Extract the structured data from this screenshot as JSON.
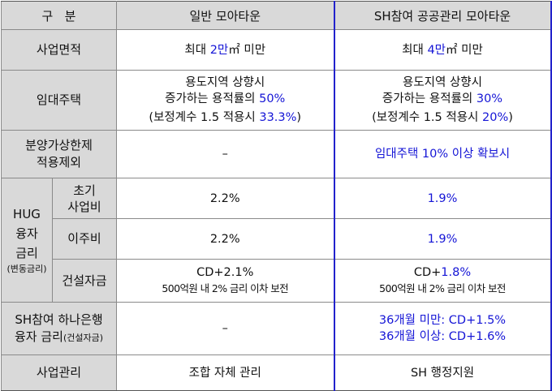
{
  "header": {
    "col_category": "구   분",
    "col_general": "일반 모아타운",
    "col_sh": "SH참여 공공관리 모아타운"
  },
  "rows": {
    "area": {
      "label": "사업면적",
      "general": {
        "pre": "최대 ",
        "hl": "2만",
        "post": "㎡ 미만"
      },
      "sh": {
        "pre": "최대 ",
        "hl": "4만",
        "post": "㎡ 미만"
      }
    },
    "rental": {
      "label": "임대주택",
      "general": {
        "line1": "용도지역 상향시",
        "line2_pre": "증가하는 용적률의 ",
        "line2_hl": "50%",
        "line3_pre": "(보정계수 1.5 적용시 ",
        "line3_hl": "33.3%",
        "line3_post": ")"
      },
      "sh": {
        "line1": "용도지역 상향시",
        "line2_pre": "증가하는 용적률의 ",
        "line2_hl": "30%",
        "line3_pre": "(보정계수 1.5 적용시 ",
        "line3_hl": "20%",
        "line3_post": ")"
      }
    },
    "price_cap": {
      "label_line1": "분양가상한제",
      "label_line2": "적용제외",
      "general": "–",
      "sh": "임대주택 10% 이상 확보시"
    },
    "hug": {
      "group_line1": "HUG",
      "group_line2": "융자",
      "group_line3": "금리",
      "group_note": "(변동금리)",
      "initial": {
        "label_line1": "초기",
        "label_line2": "사업비",
        "general": "2.2%",
        "sh": "1.9%"
      },
      "relocation": {
        "label": "이주비",
        "general": "2.2%",
        "sh": "1.9%"
      },
      "construction": {
        "label": "건설자금",
        "general_line1": "CD+2.1%",
        "general_line2": "500억원 내 2% 금리 이차 보전",
        "sh_line1_pre": "CD+",
        "sh_line1_hl": "1.8%",
        "sh_line2": "500억원 내 2% 금리 이차 보전"
      }
    },
    "hana": {
      "label_line1": "SH참여 하나은행",
      "label_line2_main": "융자 금리",
      "label_line2_small": "(건설자금)",
      "general": "–",
      "sh_line1": "36개월 미만: CD+1.5%",
      "sh_line2": "36개월 이상: CD+1.6%"
    },
    "management": {
      "label": "사업관리",
      "general": "조합 자체 관리",
      "sh": "SH 행정지원"
    }
  },
  "colors": {
    "label_bg": "#d9d9d9",
    "highlight": "#1515d6",
    "sh_column_border": "#2222cc"
  }
}
